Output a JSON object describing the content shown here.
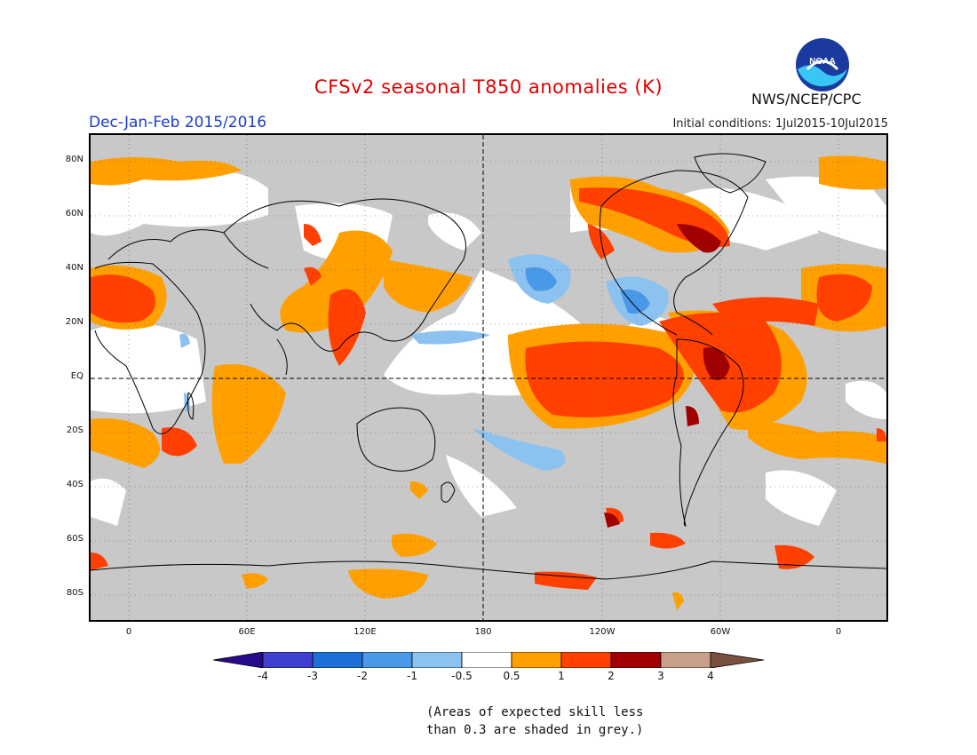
{
  "header": {
    "title": "CFSv2 seasonal T850 anomalies (K)",
    "period": "Dec-Jan-Feb 2015/2016",
    "init_conditions": "Initial conditions:  1Jul2015-10Jul2015",
    "agency": "NWS/NCEP/CPC",
    "logo_text": "NOAA",
    "title_color": "#e00000",
    "period_color": "#1a3ccc"
  },
  "map": {
    "projection": "cylindrical equidistant, centered 180",
    "lat_labels": [
      "80N",
      "60N",
      "40N",
      "20N",
      "EQ",
      "20S",
      "40S",
      "60S",
      "80S"
    ],
    "lon_labels": [
      "0",
      "60E",
      "120E",
      "180",
      "120W",
      "60W",
      "0"
    ]
  },
  "colorbar": {
    "colors": [
      "#2a0a8c",
      "#4040d0",
      "#1f6fd8",
      "#4a98e8",
      "#8cc2f0",
      "#ffffff",
      "#ffa000",
      "#ff4000",
      "#a00000",
      "#c8a08a",
      "#7a5040"
    ],
    "labels": [
      "-4",
      "-3",
      "-2",
      "-1",
      "-0.5",
      "0.5",
      "1",
      "2",
      "3",
      "4"
    ]
  },
  "footnote": {
    "line1": "(Areas of expected skill less",
    "line2": "than 0.3 are shaded in grey.)"
  }
}
